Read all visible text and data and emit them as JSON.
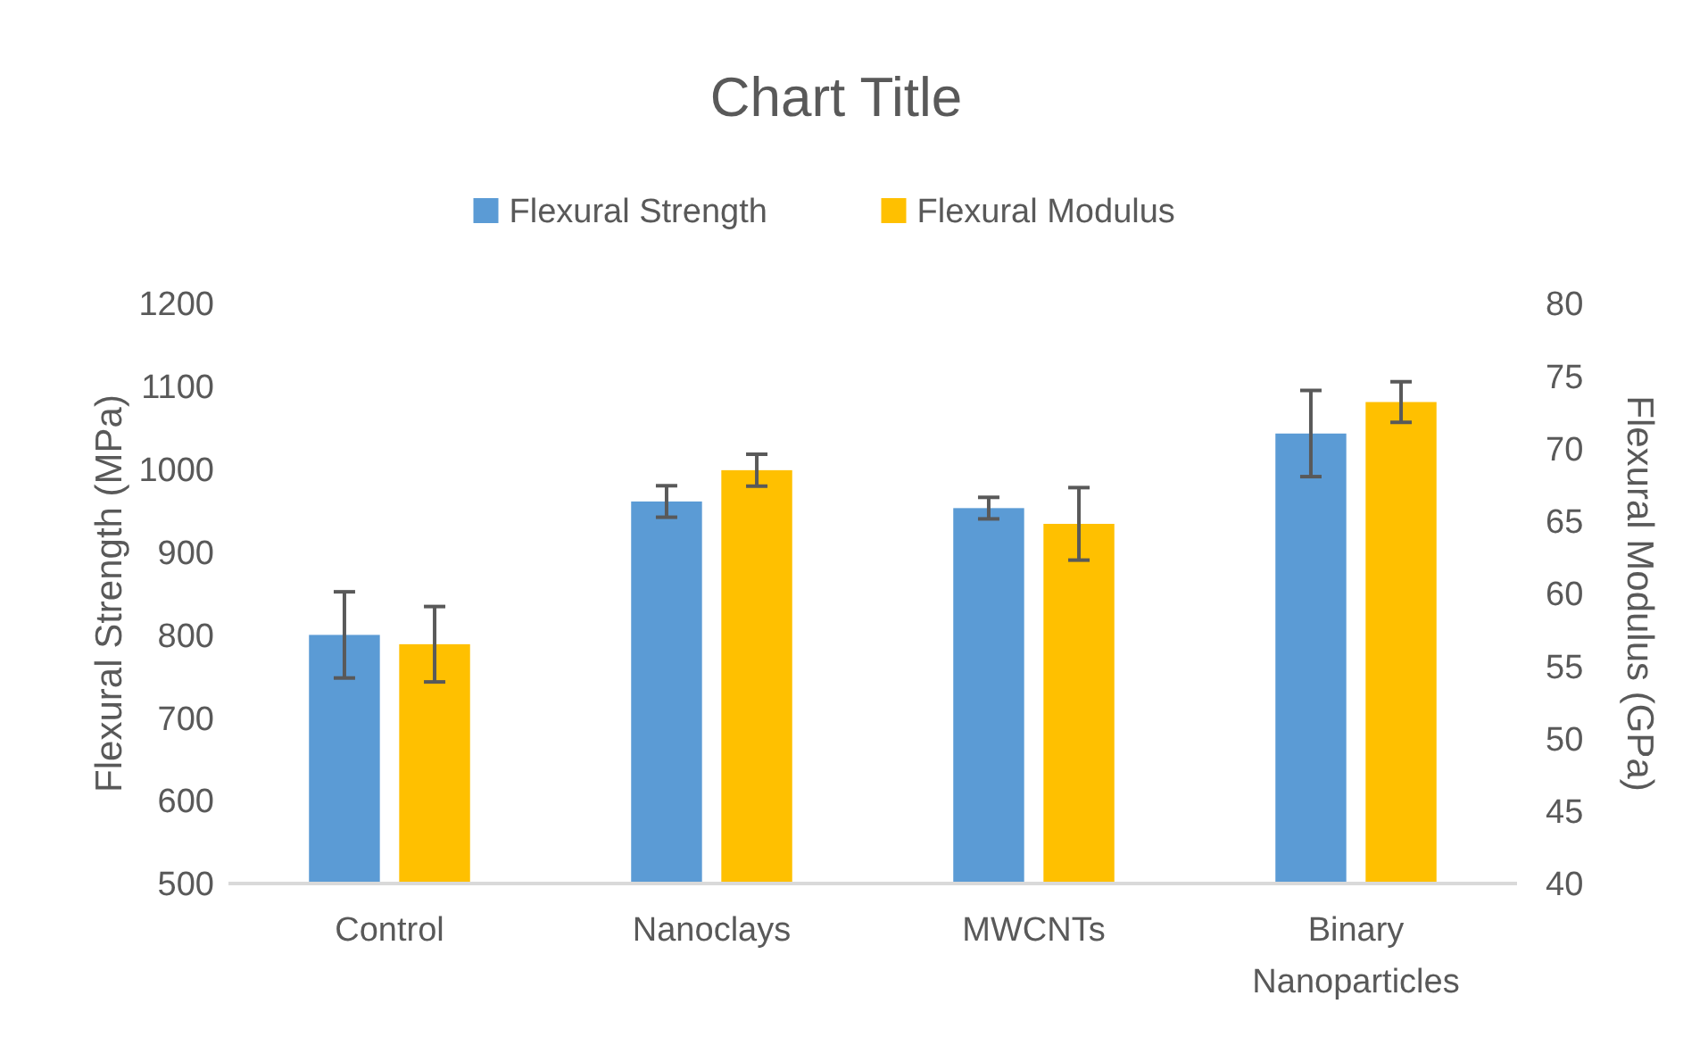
{
  "chart_data": {
    "type": "bar",
    "title": "Chart Title",
    "ylabel": "Flexural Strength (MPa)",
    "y2label": "Flexural Modulus (GPa)",
    "categories": [
      "Control",
      "Nanoclays",
      "MWCNTs",
      "Binary Nanoparticles"
    ],
    "series": [
      {
        "name": "Flexural Strength",
        "color": "#5b9bd5",
        "values": [
          800,
          961,
          953,
          1043
        ],
        "errors": [
          52,
          19,
          13,
          52
        ]
      },
      {
        "name": "Flexural Modulus",
        "color": "#ffc000",
        "values": [
          56.5,
          68.5,
          64.8,
          73.2
        ],
        "errors": [
          2.6,
          1.1,
          2.5,
          1.4
        ],
        "axis": "y2"
      }
    ],
    "ylim": [
      500,
      1200
    ],
    "yticks": [
      500,
      600,
      700,
      800,
      900,
      1000,
      1100,
      1200
    ],
    "y2lim": [
      40,
      80
    ],
    "y2ticks": [
      40,
      45,
      50,
      55,
      60,
      65,
      70,
      75,
      80
    ],
    "grid": false,
    "legend": "top"
  }
}
